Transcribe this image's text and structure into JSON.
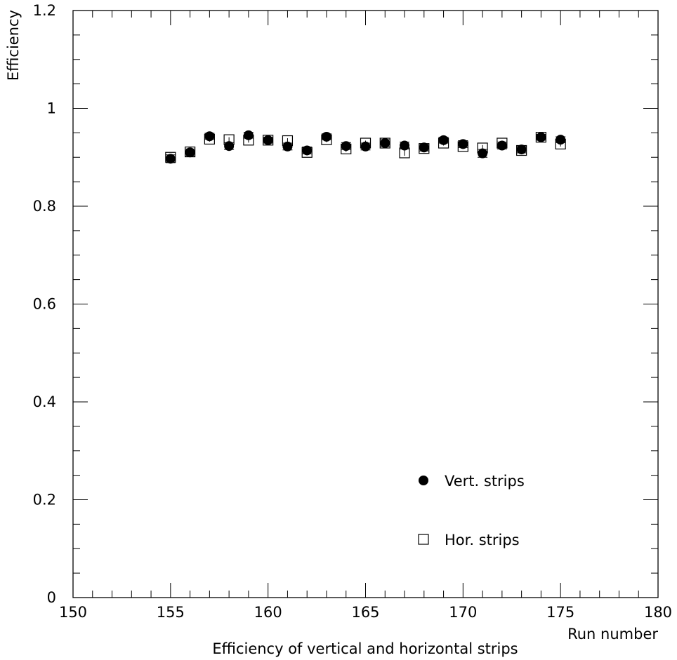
{
  "chart_data": {
    "type": "scatter",
    "title": "",
    "caption": "Efficiency of vertical and horizontal strips",
    "xlabel": "Run number",
    "ylabel": "Efficiency",
    "xlim": [
      150,
      180
    ],
    "ylim": [
      0,
      1.2
    ],
    "x_ticks": [
      "150",
      "155",
      "160",
      "165",
      "170",
      "175",
      "180"
    ],
    "y_ticks": [
      "0",
      "0.2",
      "0.4",
      "0.6",
      "0.8",
      "1",
      "1.2"
    ],
    "x_tick_values": [
      150,
      155,
      160,
      165,
      170,
      175,
      180
    ],
    "y_tick_values": [
      0,
      0.2,
      0.4,
      0.6,
      0.8,
      1.0,
      1.2
    ],
    "grid": false,
    "legend_position": "bottom-right",
    "x": [
      155,
      156,
      157,
      158,
      159,
      160,
      161,
      162,
      163,
      164,
      165,
      166,
      167,
      168,
      169,
      170,
      171,
      172,
      173,
      174,
      175
    ],
    "series": [
      {
        "name": "Vert. strips",
        "marker": "filled-circle",
        "values": [
          0.897,
          0.91,
          0.943,
          0.923,
          0.945,
          0.935,
          0.922,
          0.914,
          0.942,
          0.923,
          0.922,
          0.929,
          0.924,
          0.92,
          0.935,
          0.927,
          0.908,
          0.924,
          0.916,
          0.941,
          0.936
        ],
        "errors": [
          0.008,
          0.007,
          0.006,
          0.007,
          0.006,
          0.006,
          0.007,
          0.007,
          0.006,
          0.007,
          0.007,
          0.007,
          0.007,
          0.007,
          0.006,
          0.007,
          0.008,
          0.007,
          0.007,
          0.006,
          0.006
        ]
      },
      {
        "name": "Hor. strips",
        "marker": "open-square",
        "values": [
          0.9,
          0.911,
          0.937,
          0.936,
          0.935,
          0.935,
          0.934,
          0.91,
          0.936,
          0.917,
          0.929,
          0.929,
          0.909,
          0.918,
          0.929,
          0.922,
          0.919,
          0.929,
          0.914,
          0.941,
          0.927
        ],
        "errors": [
          0.006,
          0.006,
          0.005,
          0.005,
          0.005,
          0.005,
          0.005,
          0.006,
          0.005,
          0.006,
          0.005,
          0.005,
          0.006,
          0.006,
          0.005,
          0.005,
          0.006,
          0.005,
          0.006,
          0.005,
          0.005
        ]
      }
    ],
    "colors": {
      "marker": "#000000",
      "axis": "#000000",
      "background": "#ffffff"
    }
  }
}
